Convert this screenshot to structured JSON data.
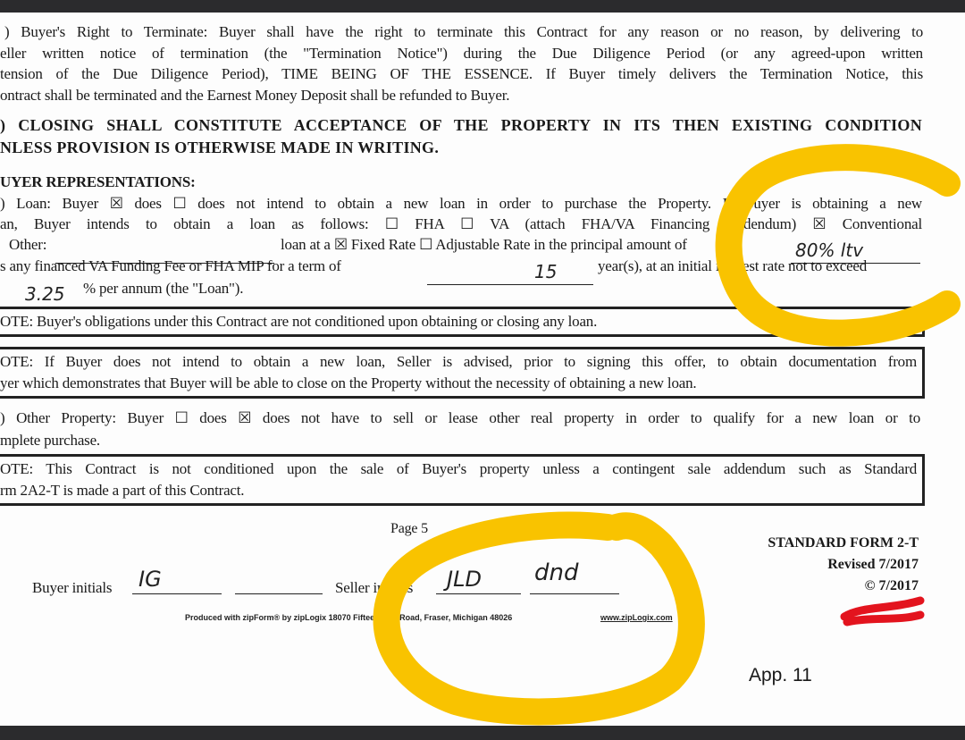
{
  "section_terminate": {
    "lines": [
      ")  Buyer's Right to Terminate: Buyer shall have the right to terminate this Contract for any reason or no reason, by delivering to",
      "eller written notice of termination (the \"Termination Notice\") during the Due Diligence Period (or any agreed-upon written",
      "tension of the Due Diligence Period), TIME BEING OF THE ESSENCE. If Buyer timely delivers the Termination Notice, this",
      "ontract shall be terminated and the Earnest Money Deposit shall be refunded to Buyer."
    ],
    "heading": "Buyer's Right to Terminate:",
    "essence": "TIME BEING OF THE ESSENCE."
  },
  "closing": {
    "lines": [
      ")  CLOSING SHALL CONSTITUTE ACCEPTANCE OF THE PROPERTY IN ITS THEN EXISTING CONDITION",
      "NLESS PROVISION IS OTHERWISE MADE IN WRITING."
    ]
  },
  "buyer_reps": {
    "heading": "UYER REPRESENTATIONS:",
    "loan_lines": [
      ")  Loan: Buyer ☒ does ☐ does not intend to obtain a new loan in order to purchase the Property. If Buyer is obtaining a new",
      "an, Buyer intends to obtain a loan as follows: ☐ FHA ☐ VA (attach FHA/VA Financing Addendum) ☒ Conventional",
      "Other:",
      "loan at a ☒ Fixed Rate ☐ Adjustable Rate in the principal amount of",
      "s any financed VA Funding Fee or FHA MIP for a term of",
      "year(s), at an initial interest rate not to exceed",
      "% per annum (the \"Loan\")."
    ],
    "handwritten": {
      "amount": "80% ltv",
      "term": "15",
      "rate": "3.25"
    },
    "note1": "OTE: Buyer's obligations under this Contract are not conditioned upon obtaining or closing any loan.",
    "note2": [
      "OTE: If Buyer does not intend to obtain a new loan, Seller is advised, prior to signing this offer, to obtain documentation from",
      "yer which demonstrates that Buyer will be able to close on the Property without the necessity of obtaining a new loan."
    ],
    "other_property": [
      ")  Other Property: Buyer ☐ does ☒ does not have to sell or lease other real property in order to qualify for a new loan or to",
      "mplete purchase."
    ],
    "note3": [
      "OTE: This Contract is not conditioned upon the sale of Buyer's property unless a contingent sale addendum such as Standard",
      "rm 2A2-T is made a part of this Contract."
    ]
  },
  "footer": {
    "page": "Page 5",
    "buyer_initials_label": "Buyer initials",
    "buyer_initials": "IG",
    "seller_initials_label": "Seller initials",
    "seller_initials": [
      "JLD",
      "dnd"
    ],
    "produced": "Produced with zipForm® by zipLogix 18070 Fifteen Mile Road, Fraser, Michigan 48026",
    "produced_url": "www.zipLogix.com",
    "form_name": "STANDARD FORM 2-T",
    "revised": "Revised 7/2017",
    "copyright": "© 7/2017",
    "app": "App. 11"
  },
  "colors": {
    "highlight": "#f9c300",
    "redaction": "#e3141e"
  }
}
